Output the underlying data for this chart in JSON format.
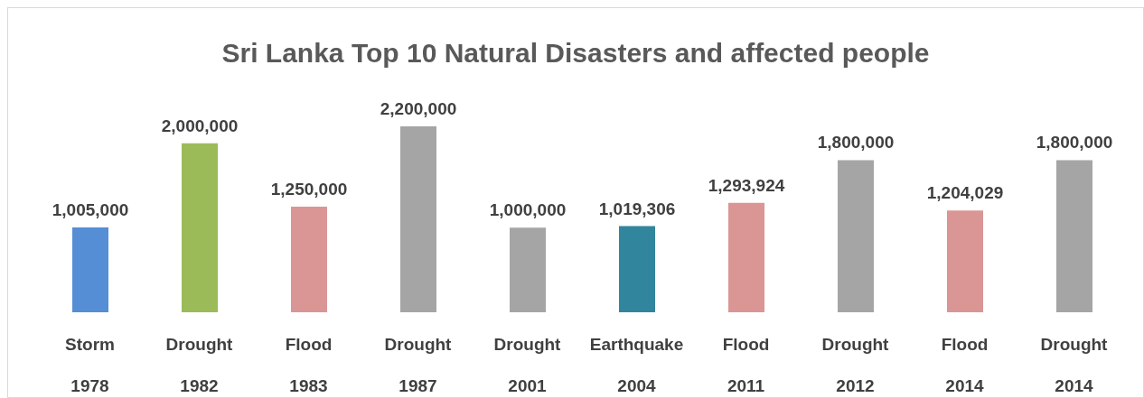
{
  "chart_data": {
    "type": "bar",
    "title": "Sri Lanka Top 10 Natural Disasters and affected people",
    "categories": [
      "Storm\n1978",
      "Drought\n1982",
      "Flood\n1983",
      "Drought\n1987",
      "Drought\n2001",
      "Earthquake\n2004",
      "Flood\n2011",
      "Drought\n2012",
      "Flood\n2014",
      "Drought\n2014"
    ],
    "values": [
      1005000,
      2000000,
      1250000,
      2200000,
      1000000,
      1019306,
      1293924,
      1800000,
      1204029,
      1800000
    ],
    "colors": [
      "#558ed5",
      "#9bbb59",
      "#d99694",
      "#a5a5a5",
      "#a5a5a5",
      "#31859c",
      "#d99694",
      "#a5a5a5",
      "#d99694",
      "#a5a5a5"
    ],
    "value_labels": [
      "1,005,000",
      "2,000,000",
      "1,250,000",
      "2,200,000",
      "1,000,000",
      "1,019,306",
      "1,293,924",
      "1,800,000",
      "1,204,029",
      "1,800,000"
    ],
    "grid": false,
    "legend": false
  }
}
